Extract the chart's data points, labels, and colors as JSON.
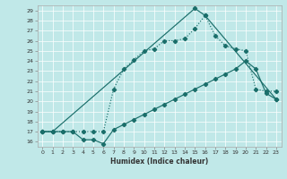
{
  "xlabel": "Humidex (Indice chaleur)",
  "bg_color": "#c0e8e8",
  "line_color": "#1a6e6a",
  "xlim": [
    -0.5,
    23.5
  ],
  "ylim": [
    15.5,
    29.5
  ],
  "xticks": [
    0,
    1,
    2,
    3,
    4,
    5,
    6,
    7,
    8,
    9,
    10,
    11,
    12,
    13,
    14,
    15,
    16,
    17,
    18,
    19,
    20,
    21,
    22,
    23
  ],
  "yticks": [
    16,
    17,
    18,
    19,
    20,
    21,
    22,
    23,
    24,
    25,
    26,
    27,
    28,
    29
  ],
  "line1_x": [
    0,
    1,
    2,
    3,
    4,
    5,
    6,
    7,
    8,
    9,
    10,
    11,
    12,
    13,
    14,
    15,
    16,
    17,
    18,
    19,
    20,
    21,
    22,
    23
  ],
  "line1_y": [
    17.0,
    17.0,
    17.0,
    17.0,
    16.2,
    16.2,
    15.8,
    17.2,
    17.7,
    18.2,
    18.7,
    19.2,
    19.7,
    20.2,
    20.7,
    21.2,
    21.7,
    22.2,
    22.7,
    23.2,
    24.0,
    23.2,
    20.8,
    20.2
  ],
  "line2_x": [
    0,
    1,
    2,
    3,
    4,
    5,
    6,
    7,
    8,
    9,
    10,
    11,
    12,
    13,
    14,
    15,
    16,
    17,
    18,
    19,
    20,
    21,
    22,
    23
  ],
  "line2_y": [
    17.0,
    17.0,
    17.0,
    17.0,
    17.0,
    17.0,
    17.0,
    21.2,
    23.2,
    24.1,
    25.0,
    25.2,
    26.0,
    26.0,
    26.2,
    27.2,
    28.5,
    26.5,
    25.5,
    25.2,
    25.0,
    21.2,
    21.0,
    21.0
  ],
  "line3_x": [
    0,
    1,
    15,
    16,
    23
  ],
  "line3_y": [
    17.0,
    17.0,
    29.2,
    28.5,
    20.2
  ]
}
